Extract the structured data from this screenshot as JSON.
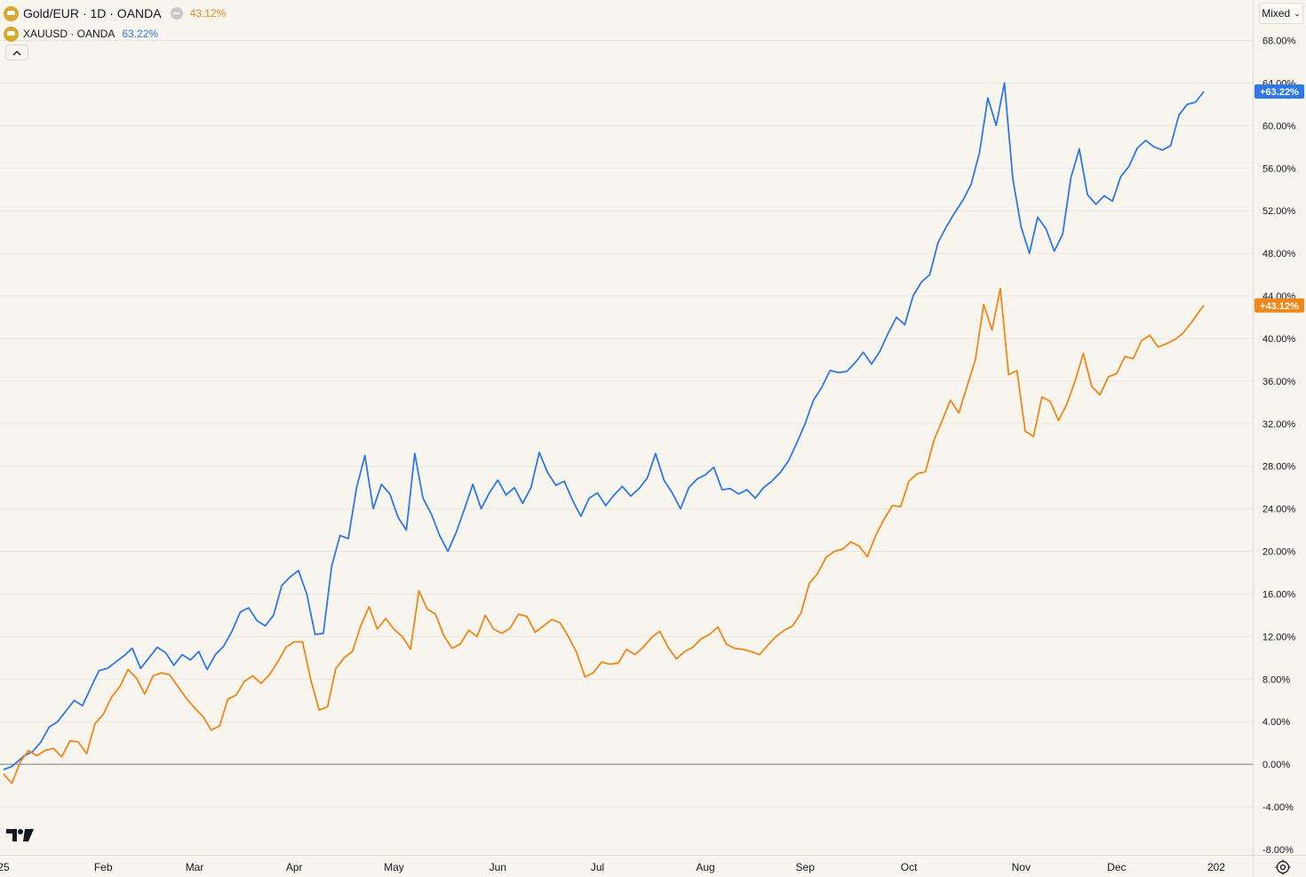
{
  "legend": {
    "main_title": "Gold/EUR · 1D · OANDA",
    "main_value": "43.12%",
    "compare_title": "XAUUSD · OANDA",
    "compare_value": "63.22%",
    "collapse_icon": "chevron-up-icon"
  },
  "scale_mode": "Mixed",
  "colors": {
    "background": "#f8f5ee",
    "gold_eur": "#f0871a",
    "xauusd": "#2f78e8",
    "grid": "#ebe7df",
    "zero_line": "#787b86"
  },
  "chart_data": {
    "type": "line",
    "title": "",
    "xlabel": "",
    "ylabel": "",
    "x_tick_labels": [
      "25",
      "Feb",
      "Mar",
      "Apr",
      "May",
      "Jun",
      "Jul",
      "Aug",
      "Sep",
      "Oct",
      "Nov",
      "Dec",
      "202"
    ],
    "y_tick_labels": [
      "68.00%",
      "64.00%",
      "60.00%",
      "56.00%",
      "52.00%",
      "48.00%",
      "44.00%",
      "40.00%",
      "36.00%",
      "32.00%",
      "28.00%",
      "24.00%",
      "20.00%",
      "16.00%",
      "12.00%",
      "8.00%",
      "4.00%",
      "0.00%",
      "-4.00%",
      "-8.00%"
    ],
    "y_ticks": [
      68,
      64,
      60,
      56,
      52,
      48,
      44,
      40,
      36,
      32,
      28,
      24,
      20,
      16,
      12,
      8,
      4,
      0,
      -4,
      -8
    ],
    "ylim": [
      -8.8,
      68.6
    ],
    "x_unit": "trading days since first bar",
    "xlim": [
      0,
      276
    ],
    "x_tick_positions": [
      0,
      24,
      46,
      70,
      94,
      119,
      143,
      169,
      193,
      218,
      245,
      268,
      292
    ],
    "grid": true,
    "legend_position": "top-left",
    "series": [
      {
        "name": "XAUUSD · OANDA",
        "last_label": "+63.22%",
        "points": [
          [
            0,
            -0.5
          ],
          [
            2,
            -0.2
          ],
          [
            5,
            0.8
          ],
          [
            7,
            1.2
          ],
          [
            9,
            2.1
          ],
          [
            11,
            3.5
          ],
          [
            13,
            4.0
          ],
          [
            15,
            5.0
          ],
          [
            17,
            6.0
          ],
          [
            19,
            5.5
          ],
          [
            21,
            7.2
          ],
          [
            23,
            8.8
          ],
          [
            25,
            9.0
          ],
          [
            27,
            9.6
          ],
          [
            29,
            10.2
          ],
          [
            31,
            10.9
          ],
          [
            33,
            9.0
          ],
          [
            35,
            10.0
          ],
          [
            37,
            11.0
          ],
          [
            39,
            10.5
          ],
          [
            41,
            9.3
          ],
          [
            43,
            10.3
          ],
          [
            45,
            9.8
          ],
          [
            47,
            10.6
          ],
          [
            49,
            8.9
          ],
          [
            51,
            10.3
          ],
          [
            53,
            11.1
          ],
          [
            55,
            12.5
          ],
          [
            57,
            14.3
          ],
          [
            59,
            14.7
          ],
          [
            61,
            13.5
          ],
          [
            63,
            13.0
          ],
          [
            65,
            14.0
          ],
          [
            67,
            16.8
          ],
          [
            69,
            17.6
          ],
          [
            71,
            18.2
          ],
          [
            73,
            16.0
          ],
          [
            75,
            12.2
          ],
          [
            77,
            12.3
          ],
          [
            79,
            18.6
          ],
          [
            81,
            21.5
          ],
          [
            83,
            21.2
          ],
          [
            85,
            26.0
          ],
          [
            87,
            29.0
          ],
          [
            89,
            24.0
          ],
          [
            91,
            26.3
          ],
          [
            93,
            25.4
          ],
          [
            95,
            23.2
          ],
          [
            97,
            22.0
          ],
          [
            99,
            29.2
          ],
          [
            101,
            25.0
          ],
          [
            103,
            23.5
          ],
          [
            105,
            21.5
          ],
          [
            107,
            20.0
          ],
          [
            109,
            21.8
          ],
          [
            111,
            24.0
          ],
          [
            113,
            26.3
          ],
          [
            115,
            24.0
          ],
          [
            117,
            25.5
          ],
          [
            119,
            26.7
          ],
          [
            121,
            25.3
          ],
          [
            123,
            26.0
          ],
          [
            125,
            24.5
          ],
          [
            127,
            26.0
          ],
          [
            129,
            29.3
          ],
          [
            131,
            27.4
          ],
          [
            133,
            26.2
          ],
          [
            135,
            26.6
          ],
          [
            137,
            24.8
          ],
          [
            139,
            23.3
          ],
          [
            141,
            25.0
          ],
          [
            143,
            25.5
          ],
          [
            145,
            24.3
          ],
          [
            147,
            25.3
          ],
          [
            149,
            26.1
          ],
          [
            151,
            25.2
          ],
          [
            153,
            25.9
          ],
          [
            155,
            26.9
          ],
          [
            157,
            29.2
          ],
          [
            159,
            26.7
          ],
          [
            161,
            25.5
          ],
          [
            163,
            24.0
          ],
          [
            165,
            26.0
          ],
          [
            167,
            26.8
          ],
          [
            169,
            27.2
          ],
          [
            171,
            27.9
          ],
          [
            173,
            25.8
          ],
          [
            175,
            25.9
          ],
          [
            177,
            25.4
          ],
          [
            179,
            25.8
          ],
          [
            181,
            25.0
          ],
          [
            183,
            26.0
          ],
          [
            185,
            26.6
          ],
          [
            187,
            27.4
          ],
          [
            189,
            28.5
          ],
          [
            191,
            30.2
          ],
          [
            193,
            32.0
          ],
          [
            195,
            34.2
          ],
          [
            197,
            35.4
          ],
          [
            199,
            37.0
          ],
          [
            201,
            36.8
          ],
          [
            203,
            36.9
          ],
          [
            205,
            37.7
          ],
          [
            207,
            38.7
          ],
          [
            209,
            37.6
          ],
          [
            211,
            38.8
          ],
          [
            213,
            40.5
          ],
          [
            215,
            42.0
          ],
          [
            217,
            41.3
          ],
          [
            219,
            44.0
          ],
          [
            221,
            45.3
          ],
          [
            223,
            46.0
          ],
          [
            225,
            49.0
          ],
          [
            227,
            50.5
          ],
          [
            229,
            51.8
          ],
          [
            231,
            53.0
          ],
          [
            233,
            54.5
          ],
          [
            235,
            57.5
          ],
          [
            237,
            62.6
          ],
          [
            239,
            60.0
          ],
          [
            241,
            64.0
          ],
          [
            243,
            55.0
          ],
          [
            245,
            50.5
          ],
          [
            247,
            48.0
          ],
          [
            249,
            51.4
          ],
          [
            251,
            50.3
          ],
          [
            253,
            48.2
          ],
          [
            255,
            49.8
          ],
          [
            257,
            55.1
          ],
          [
            259,
            57.8
          ],
          [
            261,
            53.5
          ],
          [
            263,
            52.6
          ],
          [
            265,
            53.4
          ],
          [
            267,
            52.9
          ],
          [
            269,
            55.2
          ],
          [
            271,
            56.2
          ],
          [
            273,
            57.9
          ],
          [
            275,
            58.6
          ],
          [
            277,
            58.0
          ],
          [
            279,
            57.7
          ],
          [
            281,
            58.1
          ],
          [
            283,
            61.0
          ],
          [
            285,
            62.0
          ],
          [
            287,
            62.2
          ],
          [
            289,
            63.2
          ]
        ]
      },
      {
        "name": "Gold/EUR · 1D · OANDA",
        "last_label": "+43.12%",
        "points": [
          [
            0,
            -0.9
          ],
          [
            2,
            -1.8
          ],
          [
            4,
            0.2
          ],
          [
            6,
            1.3
          ],
          [
            8,
            0.8
          ],
          [
            10,
            1.3
          ],
          [
            12,
            1.5
          ],
          [
            14,
            0.7
          ],
          [
            16,
            2.2
          ],
          [
            18,
            2.1
          ],
          [
            20,
            1.0
          ],
          [
            22,
            3.8
          ],
          [
            24,
            4.7
          ],
          [
            26,
            6.3
          ],
          [
            28,
            7.3
          ],
          [
            30,
            8.9
          ],
          [
            32,
            8.1
          ],
          [
            34,
            6.6
          ],
          [
            36,
            8.3
          ],
          [
            38,
            8.6
          ],
          [
            40,
            8.4
          ],
          [
            42,
            7.3
          ],
          [
            44,
            6.2
          ],
          [
            46,
            5.3
          ],
          [
            48,
            4.5
          ],
          [
            50,
            3.2
          ],
          [
            52,
            3.6
          ],
          [
            54,
            6.1
          ],
          [
            56,
            6.5
          ],
          [
            58,
            7.8
          ],
          [
            60,
            8.3
          ],
          [
            62,
            7.6
          ],
          [
            64,
            8.4
          ],
          [
            66,
            9.6
          ],
          [
            68,
            11.0
          ],
          [
            70,
            11.5
          ],
          [
            72,
            11.5
          ],
          [
            74,
            7.9
          ],
          [
            76,
            5.1
          ],
          [
            78,
            5.4
          ],
          [
            80,
            9.0
          ],
          [
            82,
            10.0
          ],
          [
            84,
            10.6
          ],
          [
            86,
            13.0
          ],
          [
            88,
            14.8
          ],
          [
            90,
            12.7
          ],
          [
            92,
            13.7
          ],
          [
            94,
            12.7
          ],
          [
            96,
            12.0
          ],
          [
            98,
            10.8
          ],
          [
            100,
            16.3
          ],
          [
            102,
            14.6
          ],
          [
            104,
            14.1
          ],
          [
            106,
            12.1
          ],
          [
            108,
            10.9
          ],
          [
            110,
            11.3
          ],
          [
            112,
            12.6
          ],
          [
            114,
            12.0
          ],
          [
            116,
            14.0
          ],
          [
            118,
            12.7
          ],
          [
            120,
            12.3
          ],
          [
            122,
            12.8
          ],
          [
            124,
            14.1
          ],
          [
            126,
            13.9
          ],
          [
            128,
            12.4
          ],
          [
            130,
            13.0
          ],
          [
            132,
            13.6
          ],
          [
            134,
            13.3
          ],
          [
            136,
            12.0
          ],
          [
            138,
            10.5
          ],
          [
            140,
            8.2
          ],
          [
            142,
            8.6
          ],
          [
            144,
            9.6
          ],
          [
            146,
            9.4
          ],
          [
            148,
            9.5
          ],
          [
            150,
            10.8
          ],
          [
            152,
            10.3
          ],
          [
            154,
            11.0
          ],
          [
            156,
            11.9
          ],
          [
            158,
            12.5
          ],
          [
            160,
            11.0
          ],
          [
            162,
            9.9
          ],
          [
            164,
            10.6
          ],
          [
            166,
            11.0
          ],
          [
            168,
            11.8
          ],
          [
            170,
            12.2
          ],
          [
            172,
            12.9
          ],
          [
            174,
            11.3
          ],
          [
            176,
            10.9
          ],
          [
            178,
            10.8
          ],
          [
            180,
            10.6
          ],
          [
            182,
            10.3
          ],
          [
            184,
            11.2
          ],
          [
            186,
            12.0
          ],
          [
            188,
            12.6
          ],
          [
            190,
            13.0
          ],
          [
            192,
            14.2
          ],
          [
            194,
            17.0
          ],
          [
            196,
            17.9
          ],
          [
            198,
            19.4
          ],
          [
            200,
            20.0
          ],
          [
            202,
            20.2
          ],
          [
            204,
            20.9
          ],
          [
            206,
            20.5
          ],
          [
            208,
            19.5
          ],
          [
            210,
            21.5
          ],
          [
            212,
            23.0
          ],
          [
            214,
            24.3
          ],
          [
            216,
            24.2
          ],
          [
            218,
            26.6
          ],
          [
            220,
            27.3
          ],
          [
            222,
            27.5
          ],
          [
            224,
            30.4
          ],
          [
            226,
            32.3
          ],
          [
            228,
            34.2
          ],
          [
            230,
            33.0
          ],
          [
            232,
            35.5
          ],
          [
            234,
            38.0
          ],
          [
            236,
            43.2
          ],
          [
            238,
            40.8
          ],
          [
            240,
            44.7
          ],
          [
            242,
            36.6
          ],
          [
            244,
            37.0
          ],
          [
            246,
            31.3
          ],
          [
            248,
            30.8
          ],
          [
            250,
            34.5
          ],
          [
            252,
            34.1
          ],
          [
            254,
            32.3
          ],
          [
            256,
            33.8
          ],
          [
            258,
            36.0
          ],
          [
            260,
            38.6
          ],
          [
            262,
            35.5
          ],
          [
            264,
            34.7
          ],
          [
            266,
            36.4
          ],
          [
            268,
            36.7
          ],
          [
            270,
            38.3
          ],
          [
            272,
            38.1
          ],
          [
            274,
            39.8
          ],
          [
            276,
            40.3
          ],
          [
            278,
            39.2
          ],
          [
            280,
            39.5
          ],
          [
            282,
            39.9
          ],
          [
            284,
            40.5
          ],
          [
            286,
            41.5
          ],
          [
            288,
            42.6
          ],
          [
            289,
            43.1
          ]
        ]
      }
    ]
  }
}
